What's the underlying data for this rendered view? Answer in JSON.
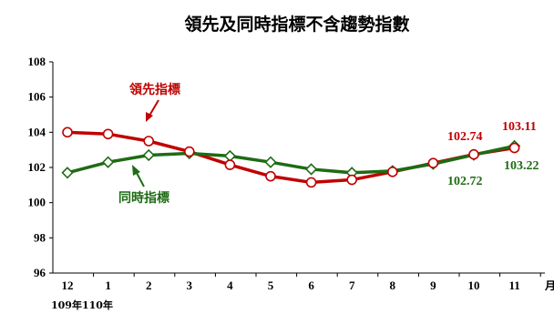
{
  "chart_data": {
    "type": "line",
    "title": "領先及同時指標不含趨勢指數",
    "categories": [
      "12",
      "1",
      "2",
      "3",
      "4",
      "5",
      "6",
      "7",
      "8",
      "9",
      "10",
      "11"
    ],
    "year_labels": [
      "109年",
      "110年"
    ],
    "x_unit": "月",
    "ylim": [
      96,
      108
    ],
    "yticks": [
      96,
      98,
      100,
      102,
      104,
      106,
      108
    ],
    "grid": false,
    "series": [
      {
        "name": "領先指標",
        "color": "#c00000",
        "marker": "circle",
        "values": [
          104.0,
          103.9,
          103.5,
          102.9,
          102.15,
          101.5,
          101.15,
          101.3,
          101.75,
          102.25,
          102.74,
          103.11
        ]
      },
      {
        "name": "同時指標",
        "color": "#1e6b14",
        "marker": "diamond",
        "values": [
          101.7,
          102.3,
          102.7,
          102.8,
          102.65,
          102.3,
          101.9,
          101.7,
          101.8,
          102.2,
          102.72,
          103.22
        ]
      }
    ],
    "annotations": {
      "lead_last_two": [
        "102.74",
        "103.11"
      ],
      "coin_last_two": [
        "102.72",
        "103.22"
      ]
    }
  }
}
